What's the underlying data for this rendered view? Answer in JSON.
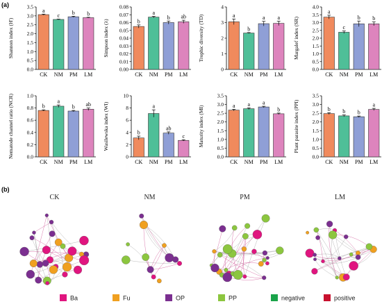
{
  "panel_a_tag": "(a)",
  "panel_b_tag": "(b)",
  "colors": {
    "CK": "#f08a5d",
    "NM": "#4fbf98",
    "PM": "#8f9fd6",
    "LM": "#dd84bd",
    "Ba": "#e0157f",
    "Fu": "#f0a020",
    "OP": "#7b2f90",
    "PP": "#8cc63f",
    "negative": "#1aa34a",
    "positive": "#c8102e"
  },
  "chart_data": [
    {
      "type": "bar",
      "ylabel": "Shannon index (H')",
      "categories": [
        "CK",
        "NM",
        "PM",
        "LM"
      ],
      "values": [
        3.07,
        2.8,
        2.95,
        2.9
      ],
      "errors": [
        0.03,
        0.02,
        0.03,
        0.02
      ],
      "letters": [
        "a",
        "c",
        "b",
        "b"
      ],
      "ylim": [
        0,
        3.5
      ],
      "ticks": [
        0,
        0.5,
        1.0,
        1.5,
        2.0,
        2.5,
        3.0,
        3.5
      ],
      "tick_labels": [
        "0.0",
        "0.5",
        "1.0",
        "1.5",
        "2.0",
        "2.5",
        "3.0",
        "3.5"
      ]
    },
    {
      "type": "bar",
      "ylabel": "Simpson index (λ)",
      "categories": [
        "CK",
        "NM",
        "PM",
        "LM"
      ],
      "values": [
        0.055,
        0.067,
        0.06,
        0.061
      ],
      "errors": [
        0.002,
        0.001,
        0.002,
        0.002
      ],
      "letters": [
        "b",
        "a",
        "b",
        "ab"
      ],
      "ylim": [
        0,
        0.08
      ],
      "ticks": [
        0,
        0.01,
        0.02,
        0.03,
        0.04,
        0.05,
        0.06,
        0.07,
        0.08
      ],
      "tick_labels": [
        "0.00",
        "0.01",
        "0.02",
        "0.03",
        "0.04",
        "0.05",
        "0.06",
        "0.07",
        "0.08"
      ]
    },
    {
      "type": "bar",
      "ylabel": "Trophic diversity (TD)",
      "categories": [
        "CK",
        "NM",
        "PM",
        "LM"
      ],
      "values": [
        3.05,
        2.33,
        2.93,
        2.95
      ],
      "errors": [
        0.18,
        0.03,
        0.15,
        0.14
      ],
      "letters": [
        "a",
        "b",
        "a",
        "a"
      ],
      "ylim": [
        0,
        4
      ],
      "ticks": [
        0,
        1,
        2,
        3,
        4
      ],
      "tick_labels": [
        "0",
        "1",
        "2",
        "3",
        "4"
      ]
    },
    {
      "type": "bar",
      "ylabel": "Margalef index (SR)",
      "categories": [
        "CK",
        "NM",
        "PM",
        "LM"
      ],
      "values": [
        3.35,
        2.38,
        2.92,
        2.92
      ],
      "errors": [
        0.12,
        0.08,
        0.18,
        0.12
      ],
      "letters": [
        "a",
        "c",
        "b",
        "b"
      ],
      "ylim": [
        0,
        4.0
      ],
      "ticks": [
        0,
        0.5,
        1.0,
        1.5,
        2.0,
        2.5,
        3.0,
        3.5,
        4.0
      ],
      "tick_labels": [
        "0.0",
        "0.5",
        "1.0",
        "1.5",
        "2.0",
        "2.5",
        "3.0",
        "3.5",
        "4.0"
      ]
    },
    {
      "type": "bar",
      "ylabel": "Nematode channel ratio (NCR)",
      "categories": [
        "CK",
        "NM",
        "PM",
        "LM"
      ],
      "values": [
        0.76,
        0.83,
        0.75,
        0.78
      ],
      "errors": [
        0.01,
        0.02,
        0.01,
        0.02
      ],
      "letters": [
        "b",
        "a",
        "b",
        "ab"
      ],
      "ylim": [
        0,
        1.0
      ],
      "ticks": [
        0,
        0.2,
        0.4,
        0.6,
        0.8,
        1.0
      ],
      "tick_labels": [
        "0.0",
        "0.2",
        "0.4",
        "0.6",
        "0.8",
        "1.0"
      ]
    },
    {
      "type": "bar",
      "ylabel": "Wasilewska index (WI)",
      "categories": [
        "CK",
        "NM",
        "PM",
        "LM"
      ],
      "values": [
        3.1,
        7.1,
        3.9,
        2.7
      ],
      "errors": [
        0.3,
        0.6,
        0.2,
        0.1
      ],
      "letters": [
        "b",
        "a",
        "ab",
        "c"
      ],
      "ylim": [
        0,
        10
      ],
      "ticks": [
        0,
        2,
        4,
        6,
        8,
        10
      ],
      "tick_labels": [
        "0",
        "2",
        "4",
        "6",
        "8",
        "10"
      ]
    },
    {
      "type": "bar",
      "ylabel": "Maturity index (MI)",
      "categories": [
        "CK",
        "NM",
        "PM",
        "LM"
      ],
      "values": [
        2.68,
        2.76,
        2.86,
        2.47
      ],
      "errors": [
        0.05,
        0.05,
        0.04,
        0.04
      ],
      "letters": [
        "a",
        "a",
        "a",
        "b"
      ],
      "ylim": [
        0,
        3.5
      ],
      "ticks": [
        0,
        0.5,
        1.0,
        1.5,
        2.0,
        2.5,
        3.0,
        3.5
      ],
      "tick_labels": [
        "0.0",
        "0.5",
        "1.0",
        "1.5",
        "2.0",
        "2.5",
        "3.0",
        "3.5"
      ]
    },
    {
      "type": "bar",
      "ylabel": "Plant parasite index (PPI)",
      "categories": [
        "CK",
        "NM",
        "PM",
        "LM"
      ],
      "values": [
        2.48,
        2.35,
        2.3,
        2.72
      ],
      "errors": [
        0.05,
        0.05,
        0.04,
        0.06
      ],
      "letters": [
        "b",
        "b",
        "b",
        "a"
      ],
      "ylim": [
        0,
        3.5
      ],
      "ticks": [
        0,
        0.5,
        1.0,
        1.5,
        2.0,
        2.5,
        3.0,
        3.5
      ],
      "tick_labels": [
        "0.0",
        "0.5",
        "1.0",
        "1.5",
        "2.0",
        "2.5",
        "3.0",
        "3.5"
      ]
    }
  ],
  "networks": [
    {
      "title": "CK",
      "node_count": 28,
      "seed": 11
    },
    {
      "title": "NM",
      "node_count": 12,
      "seed": 23
    },
    {
      "title": "PM",
      "node_count": 30,
      "seed": 37
    },
    {
      "title": "LM",
      "node_count": 22,
      "seed": 53
    }
  ],
  "legend": [
    {
      "key": "Ba",
      "label": "Ba"
    },
    {
      "key": "Fu",
      "label": "Fu"
    },
    {
      "key": "OP",
      "label": "OP"
    },
    {
      "key": "PP",
      "label": "PP"
    },
    {
      "key": "negative",
      "label": "negative"
    },
    {
      "key": "positive",
      "label": "positive"
    }
  ]
}
